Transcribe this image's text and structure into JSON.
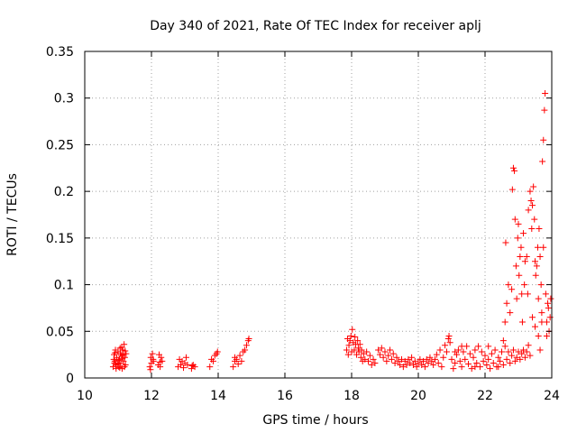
{
  "chart_data": {
    "type": "scatter",
    "title": "Day 340 of 2021, Rate Of TEC Index for receiver aplj",
    "xlabel": "GPS time / hours",
    "ylabel": "ROTI / TECUs",
    "xlim": [
      10,
      24
    ],
    "ylim": [
      0,
      0.35
    ],
    "xticks": [
      10,
      12,
      14,
      16,
      18,
      20,
      22,
      24
    ],
    "xtick_labels": [
      "10",
      "12",
      "14",
      "16",
      "18",
      "20",
      "22",
      "24"
    ],
    "yticks": [
      0,
      0.05,
      0.1,
      0.15,
      0.2,
      0.25,
      0.3,
      0.35
    ],
    "ytick_labels": [
      "0",
      "0.05",
      "0.1",
      "0.15",
      "0.2",
      "0.25",
      "0.3",
      "0.35"
    ],
    "grid": true,
    "marker": "+",
    "series": [
      {
        "name": "ROTI",
        "color": "#ff0000",
        "points": [
          [
            10.85,
            0.012
          ],
          [
            10.88,
            0.025
          ],
          [
            10.9,
            0.018
          ],
          [
            10.92,
            0.03
          ],
          [
            10.94,
            0.01
          ],
          [
            10.96,
            0.022
          ],
          [
            10.98,
            0.015
          ],
          [
            11.0,
            0.028
          ],
          [
            11.02,
            0.012
          ],
          [
            11.04,
            0.02
          ],
          [
            11.06,
            0.032
          ],
          [
            11.08,
            0.016
          ],
          [
            11.1,
            0.024
          ],
          [
            11.12,
            0.01
          ],
          [
            11.14,
            0.03
          ],
          [
            11.16,
            0.018
          ],
          [
            11.18,
            0.036
          ],
          [
            11.2,
            0.022
          ],
          [
            11.22,
            0.014
          ],
          [
            11.24,
            0.026
          ],
          [
            10.87,
            0.02
          ],
          [
            10.93,
            0.014
          ],
          [
            11.01,
            0.019
          ],
          [
            11.07,
            0.026
          ],
          [
            11.13,
            0.021
          ],
          [
            11.19,
            0.012
          ],
          [
            10.91,
            0.027
          ],
          [
            11.05,
            0.011
          ],
          [
            11.15,
            0.025
          ],
          [
            11.21,
            0.029
          ],
          [
            10.89,
            0.016
          ],
          [
            11.11,
            0.033
          ],
          [
            11.95,
            0.012
          ],
          [
            11.98,
            0.022
          ],
          [
            12.0,
            0.016
          ],
          [
            12.03,
            0.026
          ],
          [
            12.06,
            0.018
          ],
          [
            11.97,
            0.009
          ],
          [
            12.05,
            0.02
          ],
          [
            12.2,
            0.014
          ],
          [
            12.23,
            0.025
          ],
          [
            12.26,
            0.012
          ],
          [
            12.29,
            0.022
          ],
          [
            12.32,
            0.018
          ],
          [
            12.25,
            0.017
          ],
          [
            12.8,
            0.012
          ],
          [
            12.84,
            0.02
          ],
          [
            12.88,
            0.014
          ],
          [
            12.92,
            0.018
          ],
          [
            12.96,
            0.011
          ],
          [
            13.0,
            0.016
          ],
          [
            13.04,
            0.022
          ],
          [
            13.08,
            0.014
          ],
          [
            13.2,
            0.01
          ],
          [
            13.25,
            0.014
          ],
          [
            13.3,
            0.012
          ],
          [
            13.22,
            0.013
          ],
          [
            13.75,
            0.012
          ],
          [
            13.8,
            0.02
          ],
          [
            13.85,
            0.018
          ],
          [
            13.9,
            0.024
          ],
          [
            13.95,
            0.026
          ],
          [
            13.98,
            0.028
          ],
          [
            14.45,
            0.012
          ],
          [
            14.5,
            0.018
          ],
          [
            14.55,
            0.02
          ],
          [
            14.6,
            0.015
          ],
          [
            14.65,
            0.024
          ],
          [
            14.7,
            0.018
          ],
          [
            14.5,
            0.022
          ],
          [
            14.75,
            0.028
          ],
          [
            14.8,
            0.03
          ],
          [
            14.85,
            0.035
          ],
          [
            14.9,
            0.04
          ],
          [
            14.92,
            0.042
          ],
          [
            17.85,
            0.03
          ],
          [
            17.88,
            0.042
          ],
          [
            17.9,
            0.025
          ],
          [
            17.92,
            0.035
          ],
          [
            17.95,
            0.04
          ],
          [
            17.98,
            0.045
          ],
          [
            18.0,
            0.028
          ],
          [
            18.02,
            0.052
          ],
          [
            18.05,
            0.038
          ],
          [
            18.08,
            0.03
          ],
          [
            18.1,
            0.044
          ],
          [
            18.12,
            0.036
          ],
          [
            18.15,
            0.025
          ],
          [
            18.18,
            0.04
          ],
          [
            18.2,
            0.032
          ],
          [
            18.22,
            0.028
          ],
          [
            18.25,
            0.036
          ],
          [
            18.28,
            0.022
          ],
          [
            18.3,
            0.03
          ],
          [
            18.33,
            0.018
          ],
          [
            18.36,
            0.026
          ],
          [
            18.4,
            0.02
          ],
          [
            18.45,
            0.028
          ],
          [
            18.5,
            0.018
          ],
          [
            18.55,
            0.024
          ],
          [
            18.6,
            0.014
          ],
          [
            18.65,
            0.02
          ],
          [
            18.7,
            0.016
          ],
          [
            18.8,
            0.03
          ],
          [
            18.85,
            0.025
          ],
          [
            18.9,
            0.032
          ],
          [
            18.95,
            0.022
          ],
          [
            19.0,
            0.028
          ],
          [
            19.05,
            0.018
          ],
          [
            19.1,
            0.024
          ],
          [
            19.15,
            0.03
          ],
          [
            19.2,
            0.02
          ],
          [
            19.25,
            0.026
          ],
          [
            19.3,
            0.016
          ],
          [
            19.35,
            0.022
          ],
          [
            19.4,
            0.018
          ],
          [
            19.45,
            0.014
          ],
          [
            19.5,
            0.02
          ],
          [
            19.55,
            0.012
          ],
          [
            19.6,
            0.018
          ],
          [
            19.65,
            0.014
          ],
          [
            19.7,
            0.02
          ],
          [
            19.75,
            0.016
          ],
          [
            19.8,
            0.022
          ],
          [
            19.85,
            0.014
          ],
          [
            19.9,
            0.018
          ],
          [
            19.95,
            0.012
          ],
          [
            20.0,
            0.016
          ],
          [
            20.05,
            0.02
          ],
          [
            20.1,
            0.014
          ],
          [
            20.15,
            0.018
          ],
          [
            20.2,
            0.012
          ],
          [
            20.25,
            0.02
          ],
          [
            20.3,
            0.016
          ],
          [
            20.35,
            0.022
          ],
          [
            20.4,
            0.018
          ],
          [
            20.45,
            0.014
          ],
          [
            20.5,
            0.02
          ],
          [
            20.55,
            0.025
          ],
          [
            20.6,
            0.016
          ],
          [
            20.65,
            0.03
          ],
          [
            20.7,
            0.012
          ],
          [
            20.75,
            0.022
          ],
          [
            20.8,
            0.035
          ],
          [
            20.85,
            0.028
          ],
          [
            20.9,
            0.042
          ],
          [
            20.92,
            0.045
          ],
          [
            20.95,
            0.038
          ],
          [
            21.0,
            0.02
          ],
          [
            21.05,
            0.01
          ],
          [
            21.1,
            0.016
          ],
          [
            21.15,
            0.025
          ],
          [
            21.2,
            0.03
          ],
          [
            21.25,
            0.018
          ],
          [
            21.3,
            0.012
          ],
          [
            21.35,
            0.028
          ],
          [
            21.4,
            0.02
          ],
          [
            21.45,
            0.034
          ],
          [
            21.5,
            0.015
          ],
          [
            21.55,
            0.026
          ],
          [
            21.6,
            0.01
          ],
          [
            21.65,
            0.022
          ],
          [
            21.7,
            0.03
          ],
          [
            21.75,
            0.016
          ],
          [
            21.8,
            0.034
          ],
          [
            21.85,
            0.012
          ],
          [
            21.9,
            0.028
          ],
          [
            21.95,
            0.018
          ],
          [
            22.0,
            0.024
          ],
          [
            22.05,
            0.014
          ],
          [
            22.1,
            0.02
          ],
          [
            22.15,
            0.01
          ],
          [
            22.2,
            0.026
          ],
          [
            22.25,
            0.016
          ],
          [
            22.3,
            0.03
          ],
          [
            22.35,
            0.012
          ],
          [
            22.4,
            0.022
          ],
          [
            22.45,
            0.018
          ],
          [
            22.5,
            0.028
          ],
          [
            22.55,
            0.014
          ],
          [
            22.6,
            0.034
          ],
          [
            22.65,
            0.02
          ],
          [
            22.7,
            0.028
          ],
          [
            22.75,
            0.016
          ],
          [
            22.8,
            0.024
          ],
          [
            22.85,
            0.03
          ],
          [
            22.9,
            0.018
          ],
          [
            22.95,
            0.022
          ],
          [
            23.0,
            0.028
          ],
          [
            23.05,
            0.02
          ],
          [
            23.1,
            0.026
          ],
          [
            23.15,
            0.03
          ],
          [
            23.2,
            0.022
          ],
          [
            23.25,
            0.028
          ],
          [
            23.3,
            0.035
          ],
          [
            23.35,
            0.024
          ],
          [
            21.1,
            0.028
          ],
          [
            21.3,
            0.034
          ],
          [
            21.7,
            0.012
          ],
          [
            22.1,
            0.034
          ],
          [
            22.4,
            0.012
          ],
          [
            22.55,
            0.04
          ],
          [
            22.6,
            0.06
          ],
          [
            22.65,
            0.08
          ],
          [
            22.7,
            0.1
          ],
          [
            22.62,
            0.145
          ],
          [
            22.75,
            0.07
          ],
          [
            22.8,
            0.095
          ],
          [
            22.82,
            0.202
          ],
          [
            22.85,
            0.225
          ],
          [
            22.88,
            0.222
          ],
          [
            22.9,
            0.17
          ],
          [
            22.93,
            0.12
          ],
          [
            22.95,
            0.085
          ],
          [
            22.98,
            0.15
          ],
          [
            23.0,
            0.165
          ],
          [
            23.02,
            0.11
          ],
          [
            23.05,
            0.13
          ],
          [
            23.08,
            0.14
          ],
          [
            23.1,
            0.09
          ],
          [
            23.12,
            0.06
          ],
          [
            23.15,
            0.155
          ],
          [
            23.18,
            0.1
          ],
          [
            23.2,
            0.125
          ],
          [
            23.25,
            0.13
          ],
          [
            23.28,
            0.09
          ],
          [
            23.3,
            0.18
          ],
          [
            23.35,
            0.2
          ],
          [
            23.38,
            0.19
          ],
          [
            23.4,
            0.16
          ],
          [
            23.42,
            0.185
          ],
          [
            23.45,
            0.205
          ],
          [
            23.48,
            0.17
          ],
          [
            23.5,
            0.125
          ],
          [
            23.52,
            0.11
          ],
          [
            23.55,
            0.12
          ],
          [
            23.58,
            0.14
          ],
          [
            23.6,
            0.085
          ],
          [
            23.62,
            0.16
          ],
          [
            23.65,
            0.13
          ],
          [
            23.68,
            0.1
          ],
          [
            23.7,
            0.07
          ],
          [
            23.72,
            0.232
          ],
          [
            23.75,
            0.255
          ],
          [
            23.78,
            0.287
          ],
          [
            23.8,
            0.305
          ],
          [
            23.82,
            0.09
          ],
          [
            23.85,
            0.06
          ],
          [
            23.88,
            0.08
          ],
          [
            23.9,
            0.075
          ],
          [
            23.92,
            0.05
          ],
          [
            23.95,
            0.065
          ],
          [
            23.97,
            0.085
          ],
          [
            23.5,
            0.055
          ],
          [
            23.6,
            0.045
          ],
          [
            23.7,
            0.06
          ],
          [
            23.75,
            0.14
          ],
          [
            23.42,
            0.065
          ],
          [
            23.65,
            0.03
          ],
          [
            23.85,
            0.045
          ]
        ]
      }
    ]
  }
}
